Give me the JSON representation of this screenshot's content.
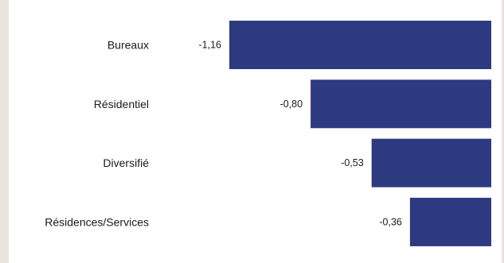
{
  "colors": {
    "bar": "#2e3a80",
    "background": "#ffffff",
    "frame": "#e9e3de",
    "text": "#1a1a1a"
  },
  "chart_data": {
    "type": "bar",
    "orientation": "horizontal",
    "categories": [
      "Bureaux",
      "Résidentiel",
      "Diversifié",
      "Résidences/Services"
    ],
    "values": [
      -1.16,
      -0.8,
      -0.53,
      -0.36
    ],
    "value_labels": [
      "-1,16",
      "-0,80",
      "-0,53",
      "-0,36"
    ],
    "xlim": [
      -1.16,
      0
    ],
    "grid": false,
    "legend": "none"
  }
}
